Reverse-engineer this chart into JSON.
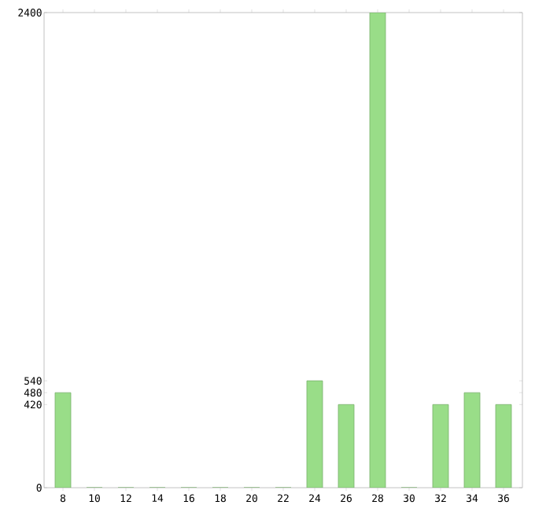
{
  "chart_data": {
    "type": "bar",
    "categories": [
      "8",
      "10",
      "12",
      "14",
      "16",
      "18",
      "20",
      "22",
      "24",
      "26",
      "28",
      "30",
      "32",
      "34",
      "36"
    ],
    "values": [
      480,
      0,
      0,
      0,
      0,
      0,
      0,
      0,
      540,
      420,
      2400,
      0,
      420,
      480,
      420
    ],
    "color": "#99dd88",
    "ylim": [
      0,
      2400
    ],
    "yticks": [
      0,
      420,
      480,
      540,
      2400
    ],
    "grid": false
  }
}
